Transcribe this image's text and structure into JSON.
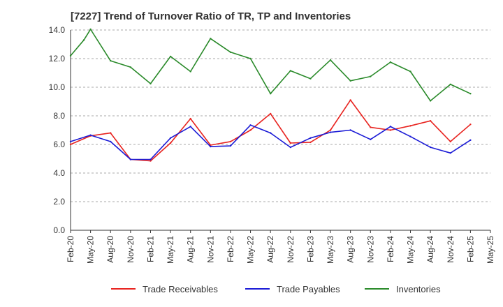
{
  "chart_data": {
    "type": "line",
    "title": "[7227]  Trend of Turnover Ratio of TR, TP and Inventories",
    "xlabel": "",
    "ylabel": "",
    "ylim": [
      0,
      14
    ],
    "yticks": [
      "0.0",
      "2.0",
      "4.0",
      "6.0",
      "8.0",
      "10.0",
      "12.0",
      "14.0"
    ],
    "x_tick_labels": [
      "Feb-20",
      "May-20",
      "Aug-20",
      "Nov-20",
      "Feb-21",
      "May-21",
      "Aug-21",
      "Nov-21",
      "Feb-22",
      "May-22",
      "Aug-22",
      "Nov-22",
      "Feb-23",
      "May-23",
      "Aug-23",
      "Nov-23",
      "Feb-24",
      "May-24",
      "Aug-24",
      "Nov-24",
      "Feb-25",
      "May-25"
    ],
    "x": [
      "Feb-20",
      "Mar-20",
      "Apr-20",
      "May-20",
      "Jun-20",
      "Jul-20",
      "Aug-20",
      "Sep-20",
      "Oct-20",
      "Nov-20",
      "Dec-20",
      "Jan-21",
      "Feb-21",
      "Mar-21",
      "Apr-21",
      "May-21",
      "Jun-21",
      "Jul-21",
      "Aug-21",
      "Sep-21",
      "Oct-21",
      "Nov-21",
      "Dec-21",
      "Jan-22",
      "Feb-22",
      "Mar-22",
      "Apr-22",
      "May-22",
      "Jun-22",
      "Jul-22",
      "Aug-22",
      "Sep-22",
      "Oct-22",
      "Nov-22",
      "Dec-22",
      "Jan-23",
      "Feb-23",
      "Mar-23",
      "Apr-23",
      "May-23",
      "Jun-23",
      "Jul-23",
      "Aug-23",
      "Sep-23",
      "Oct-23",
      "Nov-23",
      "Dec-23",
      "Jan-24",
      "Feb-24",
      "Mar-24",
      "Apr-24",
      "May-24",
      "Jun-24",
      "Jul-24",
      "Aug-24",
      "Sep-24",
      "Oct-24",
      "Nov-24",
      "Dec-24",
      "Jan-25",
      "Feb-25"
    ],
    "grid": "horizontal dashed",
    "legend_position": "bottom",
    "series": [
      {
        "name": "Trade Receivables",
        "color": "#e8231f",
        "points": [
          {
            "x": "Feb-20",
            "y": 6.0
          },
          {
            "x": "May-20",
            "y": 6.6
          },
          {
            "x": "Aug-20",
            "y": 6.8
          },
          {
            "x": "Nov-20",
            "y": 4.95
          },
          {
            "x": "Feb-21",
            "y": 4.85
          },
          {
            "x": "May-21",
            "y": 6.1
          },
          {
            "x": "Aug-21",
            "y": 7.8
          },
          {
            "x": "Nov-21",
            "y": 5.95
          },
          {
            "x": "Feb-22",
            "y": 6.2
          },
          {
            "x": "May-22",
            "y": 7.0
          },
          {
            "x": "Aug-22",
            "y": 8.15
          },
          {
            "x": "Nov-22",
            "y": 6.1
          },
          {
            "x": "Feb-23",
            "y": 6.15
          },
          {
            "x": "May-23",
            "y": 7.0
          },
          {
            "x": "Aug-23",
            "y": 9.1
          },
          {
            "x": "Nov-23",
            "y": 7.2
          },
          {
            "x": "Feb-24",
            "y": 7.0
          },
          {
            "x": "May-24",
            "y": 7.3
          },
          {
            "x": "Aug-24",
            "y": 7.65
          },
          {
            "x": "Nov-24",
            "y": 6.2
          },
          {
            "x": "Feb-25",
            "y": 7.4
          }
        ]
      },
      {
        "name": "Trade Payables",
        "color": "#1b1bd6",
        "points": [
          {
            "x": "Feb-20",
            "y": 6.2
          },
          {
            "x": "May-20",
            "y": 6.65
          },
          {
            "x": "Aug-20",
            "y": 6.2
          },
          {
            "x": "Nov-20",
            "y": 4.95
          },
          {
            "x": "Feb-21",
            "y": 4.95
          },
          {
            "x": "May-21",
            "y": 6.45
          },
          {
            "x": "Aug-21",
            "y": 7.25
          },
          {
            "x": "Nov-21",
            "y": 5.85
          },
          {
            "x": "Feb-22",
            "y": 5.9
          },
          {
            "x": "May-22",
            "y": 7.35
          },
          {
            "x": "Aug-22",
            "y": 6.8
          },
          {
            "x": "Nov-22",
            "y": 5.8
          },
          {
            "x": "Feb-23",
            "y": 6.45
          },
          {
            "x": "May-23",
            "y": 6.85
          },
          {
            "x": "Aug-23",
            "y": 7.0
          },
          {
            "x": "Nov-23",
            "y": 6.35
          },
          {
            "x": "Feb-24",
            "y": 7.25
          },
          {
            "x": "May-24",
            "y": 6.55
          },
          {
            "x": "Aug-24",
            "y": 5.8
          },
          {
            "x": "Nov-24",
            "y": 5.4
          },
          {
            "x": "Feb-25",
            "y": 6.3
          }
        ]
      },
      {
        "name": "Inventories",
        "color": "#2a8a2a",
        "points": [
          {
            "x": "Feb-20",
            "y": 12.2
          },
          {
            "x": "Apr-20",
            "y": 13.3
          },
          {
            "x": "May-20",
            "y": 14.05
          },
          {
            "x": "Aug-20",
            "y": 11.85
          },
          {
            "x": "Nov-20",
            "y": 11.4
          },
          {
            "x": "Feb-21",
            "y": 10.25
          },
          {
            "x": "May-21",
            "y": 12.15
          },
          {
            "x": "Aug-21",
            "y": 11.1
          },
          {
            "x": "Nov-21",
            "y": 13.4
          },
          {
            "x": "Feb-22",
            "y": 12.45
          },
          {
            "x": "May-22",
            "y": 12.0
          },
          {
            "x": "Aug-22",
            "y": 9.55
          },
          {
            "x": "Nov-22",
            "y": 11.15
          },
          {
            "x": "Feb-23",
            "y": 10.6
          },
          {
            "x": "May-23",
            "y": 11.9
          },
          {
            "x": "Aug-23",
            "y": 10.45
          },
          {
            "x": "Nov-23",
            "y": 10.75
          },
          {
            "x": "Feb-24",
            "y": 11.75
          },
          {
            "x": "May-24",
            "y": 11.1
          },
          {
            "x": "Aug-24",
            "y": 9.05
          },
          {
            "x": "Nov-24",
            "y": 10.2
          },
          {
            "x": "Feb-25",
            "y": 9.55
          }
        ]
      }
    ]
  }
}
